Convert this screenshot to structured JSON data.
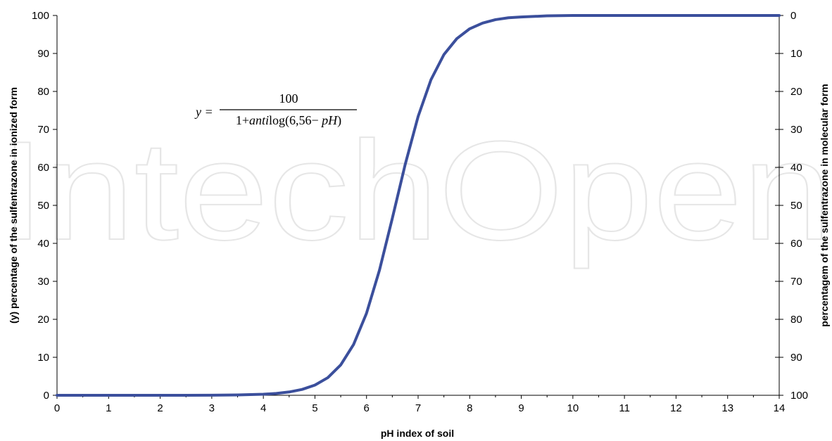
{
  "chart_data": {
    "type": "line",
    "title": "",
    "xlabel": "pH index of soil",
    "ylabel": "(y) percentage of the sulfentrazone in ionized form",
    "y2label": "percentagem of the sulfentrazone in molecular form",
    "xlim": [
      0,
      14
    ],
    "ylim": [
      0,
      100
    ],
    "y2lim": [
      100,
      0
    ],
    "x_ticks": [
      0,
      1,
      2,
      3,
      4,
      5,
      6,
      7,
      8,
      9,
      10,
      11,
      12,
      13,
      14
    ],
    "y_ticks": [
      0,
      10,
      20,
      30,
      40,
      50,
      60,
      70,
      80,
      90,
      100
    ],
    "y2_ticks": [
      100,
      90,
      80,
      70,
      60,
      50,
      40,
      30,
      20,
      10,
      0
    ],
    "grid": false,
    "legend": "none",
    "series_color": "#3b4f9c",
    "annotation": {
      "lhs": "y =",
      "numerator": "100",
      "denominator_prefix": "1+",
      "denominator_italic": "anti",
      "denominator_mid": "log(6,56− ",
      "denominator_italic2": "pH",
      "denominator_suffix": ")"
    },
    "watermark": "IntechOpen",
    "series": [
      {
        "x": [
          0,
          0.5,
          1,
          1.5,
          2,
          2.5,
          3,
          3.5,
          4,
          4.25,
          4.5,
          4.75,
          5,
          5.25,
          5.5,
          5.75,
          6,
          6.25,
          6.5,
          6.56,
          6.75,
          7,
          7.25,
          7.5,
          7.75,
          8,
          8.25,
          8.5,
          8.75,
          9,
          9.5,
          10,
          11,
          12,
          13,
          14
        ],
        "y": [
          0.0,
          0.0,
          0.0,
          0.0,
          0.0,
          0.0,
          0.03,
          0.09,
          0.27,
          0.49,
          0.87,
          1.54,
          2.68,
          4.64,
          7.99,
          13.4,
          21.6,
          32.9,
          46.6,
          50.0,
          60.8,
          73.4,
          83.1,
          89.7,
          93.9,
          96.5,
          98.0,
          98.9,
          99.4,
          99.6,
          99.9,
          100.0,
          100.0,
          100.0,
          100.0,
          100.0
        ]
      }
    ]
  }
}
